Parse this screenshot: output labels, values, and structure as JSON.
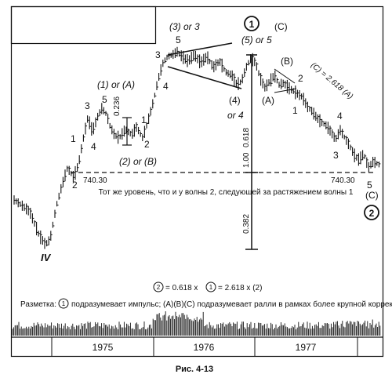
{
  "chart_data": {
    "type": "ohlc",
    "x_periods": [
      "1975",
      "1976",
      "1977"
    ],
    "price_level_label": "740.30",
    "price_level_label_right": "740.30",
    "level_note": "Тот же уровень, что и у волны 2, следующей за растяжением волны 1",
    "ratio_labels": {
      "r0618": "0.618",
      "r1": "1.00",
      "r0382": "0.382",
      "r0236": "0.236"
    },
    "formula": {
      "prefix": "2",
      "mid1": "= 0.618 x",
      "circle": "1",
      "rest": "= 2.618 x (2)"
    },
    "markup_note": {
      "prefix": "Разметка:",
      "circle": "1",
      "text": "подразумевает импульс; (A)(B)(C) подразумевает ралли в рамках более крупной коррекции"
    },
    "wave_labels": {
      "iv": "IV",
      "w1": "1",
      "w2": "2",
      "w3": "3",
      "w4": "4",
      "w5": "5",
      "w1_or_a": "(1) or (A)",
      "w2_or_b": "(2) or (B)",
      "a_1": "1",
      "a_2": "2",
      "w3_or_3": "(3) or 3",
      "top3": "3",
      "top5": "5",
      "top4": "4",
      "w4_or4_a": "(4)",
      "w4_or4_b": "or 4",
      "circ1_text": "1",
      "w5_or5": "(5) or 5",
      "c_label": "(C)",
      "a_corr": "(A)",
      "b_corr": "(B)",
      "c_ratio": "(C) = 2.618 (A)",
      "d_1": "1",
      "d_2": "2",
      "d_3": "3",
      "d_4": "4",
      "d_5": "5",
      "end_c": "(C)",
      "circ2_text": "2"
    },
    "figure_caption": "Рис. 4-13"
  }
}
